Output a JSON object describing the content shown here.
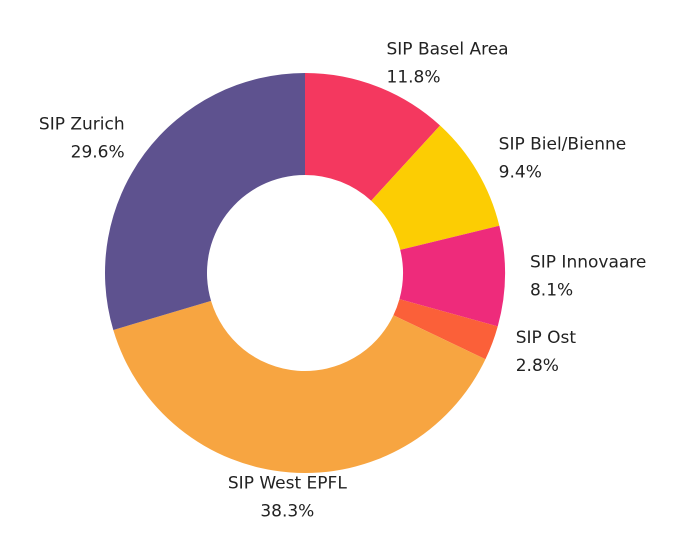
{
  "chart_data": {
    "type": "donut",
    "categories": [
      "SIP Basel Area",
      "SIP Biel/Bienne",
      "SIP Innovaare",
      "SIP Ost",
      "SIP West EPFL",
      "SIP Zurich"
    ],
    "values": [
      11.8,
      9.4,
      8.1,
      2.8,
      38.3,
      29.6
    ],
    "value_labels": [
      "11.8%",
      "9.4%",
      "8.1%",
      "2.8%",
      "38.3%",
      "29.6%"
    ],
    "colors": [
      "#f4385f",
      "#fccd03",
      "#ee2b7b",
      "#fb6039",
      "#f7a541",
      "#5e528f"
    ]
  }
}
